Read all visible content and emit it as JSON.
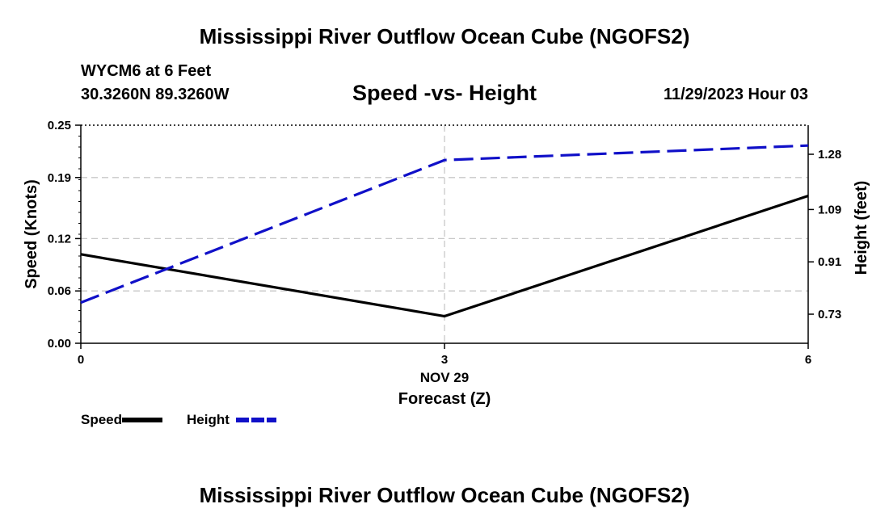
{
  "header": {
    "title": "Mississippi River Outflow Ocean Cube (NGOFS2)",
    "station": "WYCM6 at 6 Feet",
    "coords": "30.3260N  89.3260W",
    "subtitle": "Speed -vs- Height",
    "datetime": "11/29/2023 Hour 03"
  },
  "footer": {
    "title": "Mississippi River Outflow Ocean Cube (NGOFS2)"
  },
  "chart_data": {
    "type": "line",
    "title": "Speed -vs- Height",
    "x": [
      0,
      3,
      6
    ],
    "xlim": [
      0,
      6
    ],
    "x_tick_labels": [
      "0",
      "3",
      "6"
    ],
    "x_date_label": "NOV 29",
    "xlabel": "Forecast (Z)",
    "ylabel": "Speed (Knots)",
    "ylim": [
      0,
      0.25
    ],
    "y_ticks": [
      0.0,
      0.06,
      0.12,
      0.19,
      0.25
    ],
    "y_tick_labels": [
      "0.00",
      "0.06",
      "0.12",
      "0.19",
      "0.25"
    ],
    "y2label": "Height (feet)",
    "y2lim": [
      0.63,
      1.38
    ],
    "y2_ticks": [
      0.73,
      0.91,
      1.09,
      1.28
    ],
    "y2_tick_labels": [
      "0.73",
      "0.91",
      "1.09",
      "1.28"
    ],
    "grid": true,
    "series": [
      {
        "name": "Speed",
        "axis": "left",
        "color": "#000000",
        "dash": "solid",
        "values": [
          0.102,
          0.031,
          0.169
        ]
      },
      {
        "name": "Height",
        "axis": "right",
        "color": "#1010c8",
        "dash": "dashed",
        "values": [
          0.77,
          1.26,
          1.31
        ]
      }
    ]
  }
}
